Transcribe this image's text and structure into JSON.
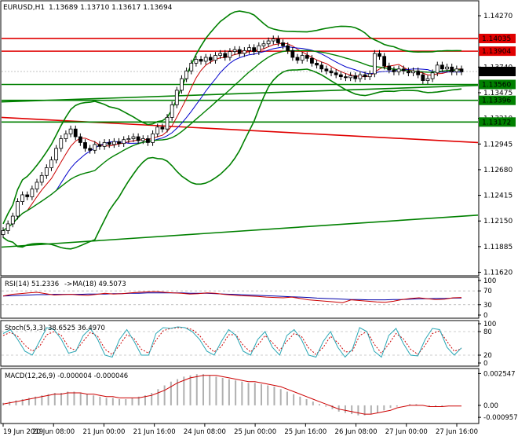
{
  "header": {
    "symbol_label": "EURUSD,H1",
    "ohlc_text": "1.13689 1.13710 1.13617 1.13694"
  },
  "colors": {
    "bull": "#000000",
    "bear": "#000000",
    "bollinger": "#008000",
    "level_red": "#e00000",
    "level_green": "#008000",
    "ma_red": "#cc0000",
    "ma_blue": "#0000cc",
    "rsi_line": "#cc0000",
    "rsi_ma": "#0000aa",
    "stoch_main": "#2aa7b5",
    "stoch_signal": "#cc0000",
    "macd_hist": "#b0b0b0",
    "macd_signal": "#cc0000"
  },
  "chart_data": [
    {
      "type": "candlestick",
      "symbol": "EURUSD,H1",
      "ylim": [
        1.116,
        1.144
      ],
      "y_ticks": [
        "1.14270",
        "1.13740",
        "1.13475",
        "1.13210",
        "1.12945",
        "1.12680",
        "1.12415",
        "1.12150",
        "1.11885",
        "1.11620"
      ],
      "y_tick_values": [
        1.1427,
        1.1374,
        1.13475,
        1.1321,
        1.12945,
        1.1268,
        1.12415,
        1.1215,
        1.11885,
        1.1162
      ],
      "x_tick_labels": [
        "19 Jun 2019",
        "20 Jun 08:00",
        "21 Jun 00:00",
        "21 Jun 16:00",
        "24 Jun 08:00",
        "25 Jun 00:00",
        "25 Jun 16:00",
        "26 Jun 08:00",
        "27 Jun 00:00",
        "27 Jun 16:00"
      ],
      "current_price": {
        "label": "1.13694",
        "value": 1.13694
      },
      "levels": [
        {
          "label": "1.14035",
          "value": 1.14035,
          "color": "red"
        },
        {
          "label": "1.13904",
          "value": 1.13904,
          "color": "red"
        },
        {
          "label": "1.13560",
          "value": 1.1356,
          "color": "green"
        },
        {
          "label": "1.13396",
          "value": 1.13396,
          "color": "green"
        },
        {
          "label": "1.13172",
          "value": 1.13172,
          "color": "green"
        }
      ],
      "trendlines": [
        {
          "color": "red",
          "from": [
            0.0,
            1.1322
          ],
          "to": [
            1.0,
            1.1296
          ]
        },
        {
          "color": "green",
          "from": [
            0.0,
            1.1188
          ],
          "to": [
            1.0,
            1.1221
          ]
        },
        {
          "color": "green",
          "from": [
            0.0,
            1.1338
          ],
          "to": [
            1.0,
            1.1355
          ]
        }
      ],
      "close": [
        1.1205,
        1.1212,
        1.122,
        1.1235,
        1.1242,
        1.124,
        1.1248,
        1.1255,
        1.1262,
        1.127,
        1.1278,
        1.129,
        1.13,
        1.1305,
        1.131,
        1.1302,
        1.1296,
        1.129,
        1.1288,
        1.1294,
        1.1292,
        1.1296,
        1.1294,
        1.1297,
        1.1295,
        1.1299,
        1.13,
        1.1302,
        1.1298,
        1.13,
        1.1296,
        1.1305,
        1.1312,
        1.131,
        1.1322,
        1.1335,
        1.135,
        1.1362,
        1.137,
        1.1378,
        1.1382,
        1.138,
        1.1384,
        1.1381,
        1.1386,
        1.1388,
        1.1384,
        1.139,
        1.1392,
        1.1388,
        1.1391,
        1.1394,
        1.139,
        1.1396,
        1.1398,
        1.1401,
        1.1403,
        1.1399,
        1.1396,
        1.1391,
        1.1384,
        1.1381,
        1.1386,
        1.1383,
        1.1378,
        1.1376,
        1.1372,
        1.137,
        1.1368,
        1.1366,
        1.1364,
        1.1363,
        1.1365,
        1.1362,
        1.1366,
        1.1364,
        1.1367,
        1.1388,
        1.1385,
        1.1375,
        1.1371,
        1.1369,
        1.1372,
        1.137,
        1.1368,
        1.137,
        1.1366,
        1.136,
        1.1362,
        1.1368,
        1.1376,
        1.1372,
        1.1374,
        1.1369,
        1.1372,
        1.1369
      ],
      "ma_fast": "red",
      "ma_slow": "blue"
    },
    {
      "type": "line",
      "title": "RSI(14) 51.2336",
      "ma_label": "->MA(18) 49.5073",
      "ylim": [
        0,
        100
      ],
      "y_ticks": [
        "100",
        "70",
        "30",
        "0"
      ],
      "levels": [
        70,
        30
      ],
      "series": [
        {
          "name": "RSI(14)",
          "values": [
            55,
            60,
            62,
            64,
            66,
            62,
            58,
            59,
            60,
            58,
            57,
            60,
            63,
            61,
            62,
            64,
            66,
            67,
            68,
            66,
            64,
            63,
            61,
            62,
            64,
            63,
            60,
            58,
            56,
            55,
            54,
            52,
            51,
            50,
            52,
            48,
            44,
            42,
            40,
            38,
            36,
            44,
            42,
            40,
            38,
            37,
            40,
            45,
            48,
            50,
            47,
            45,
            46,
            50,
            51
          ]
        },
        {
          "name": "MA(18)",
          "values": [
            55,
            56,
            57,
            58,
            59,
            59,
            60,
            60,
            60,
            60,
            61,
            61,
            61,
            62,
            62,
            63,
            63,
            64,
            64,
            64,
            64,
            64,
            63,
            63,
            63,
            62,
            61,
            60,
            59,
            58,
            57,
            56,
            55,
            54,
            53,
            52,
            51,
            49,
            48,
            47,
            46,
            45,
            45,
            44,
            44,
            44,
            45,
            45,
            46,
            47,
            47,
            48,
            48,
            49,
            49.5
          ]
        }
      ]
    },
    {
      "type": "line",
      "title": "Stoch(5,3,3) 38.6525 36.4970",
      "ylim": [
        0,
        100
      ],
      "y_ticks": [
        "100",
        "80",
        "20",
        "0"
      ],
      "levels": [
        80,
        20
      ],
      "series": [
        {
          "name": "Stoch(5,3,3)",
          "values": [
            75,
            85,
            60,
            30,
            20,
            55,
            90,
            85,
            60,
            25,
            30,
            70,
            88,
            60,
            20,
            15,
            60,
            85,
            55,
            20,
            20,
            75,
            90,
            88,
            92,
            90,
            80,
            60,
            30,
            20,
            55,
            85,
            70,
            30,
            20,
            60,
            80,
            40,
            20,
            70,
            85,
            60,
            20,
            15,
            55,
            80,
            40,
            15,
            35,
            90,
            80,
            30,
            15,
            70,
            88,
            50,
            20,
            18,
            60,
            88,
            85,
            40,
            20,
            38.6
          ]
        },
        {
          "name": "signal",
          "values": [
            70,
            78,
            68,
            45,
            30,
            42,
            72,
            80,
            70,
            40,
            32,
            55,
            78,
            68,
            35,
            22,
            45,
            72,
            62,
            35,
            25,
            58,
            82,
            88,
            90,
            90,
            85,
            70,
            45,
            28,
            42,
            72,
            72,
            45,
            28,
            45,
            70,
            52,
            32,
            55,
            75,
            68,
            38,
            22,
            40,
            68,
            52,
            28,
            30,
            70,
            80,
            48,
            25,
            48,
            75,
            62,
            35,
            22,
            45,
            75,
            82,
            55,
            30,
            36.5
          ]
        }
      ]
    },
    {
      "type": "bar",
      "title": "MACD(12,26,9) -0.000004 -0.000046",
      "ylim": [
        -0.0012,
        0.0027
      ],
      "y_ticks": [
        "0.002547",
        "0.00",
        "-0.000957"
      ],
      "series": [
        {
          "name": "MACD(12,26,9)",
          "values": [
            0.0002,
            0.0003,
            0.0004,
            0.0005,
            0.0006,
            0.0007,
            0.0008,
            0.0009,
            0.001,
            0.001,
            0.0011,
            0.0011,
            0.001,
            0.0009,
            0.0008,
            0.0007,
            0.0006,
            0.0006,
            0.0005,
            0.0005,
            0.0006,
            0.0007,
            0.0008,
            0.001,
            0.0013,
            0.0016,
            0.0019,
            0.0021,
            0.0023,
            0.0024,
            0.0025,
            0.0025,
            0.0024,
            0.0023,
            0.0022,
            0.0021,
            0.002,
            0.0019,
            0.0018,
            0.0018,
            0.0017,
            0.0016,
            0.0015,
            0.0013,
            0.0011,
            0.0009,
            0.0007,
            0.0005,
            0.0003,
            0.0001,
            -0.0001,
            -0.0003,
            -0.0005,
            -0.0006,
            -0.0007,
            -0.0008,
            -0.0008,
            -0.0007,
            -0.0006,
            -0.0004,
            -0.0002,
            -0.0001,
            0.0,
            0.0001,
            0.0001,
            0.0,
            -0.0001,
            -0.0001,
            -0.0001,
            0.0,
            0.0,
            0.0
          ]
        },
        {
          "name": "signal",
          "values": [
            0.0001,
            0.0002,
            0.0003,
            0.0004,
            0.0005,
            0.0006,
            0.0007,
            0.0008,
            0.0009,
            0.0009,
            0.001,
            0.001,
            0.001,
            0.0009,
            0.0009,
            0.0008,
            0.0007,
            0.0007,
            0.0006,
            0.0006,
            0.0006,
            0.0006,
            0.0007,
            0.0008,
            0.001,
            0.0012,
            0.0015,
            0.0018,
            0.002,
            0.0022,
            0.0023,
            0.0024,
            0.0024,
            0.0024,
            0.0023,
            0.0022,
            0.0021,
            0.002,
            0.0019,
            0.0019,
            0.0018,
            0.0017,
            0.0016,
            0.0015,
            0.0013,
            0.0011,
            0.0009,
            0.0007,
            0.0005,
            0.0003,
            0.0001,
            -0.0001,
            -0.0003,
            -0.0004,
            -0.0005,
            -0.0006,
            -0.0007,
            -0.0007,
            -0.0006,
            -0.0005,
            -0.0004,
            -0.0002,
            -0.0001,
            0.0,
            0.0,
            0.0,
            -0.0001,
            -0.0001,
            -0.0001,
            -5e-05,
            -5e-05,
            -4.6e-05
          ]
        }
      ]
    }
  ]
}
